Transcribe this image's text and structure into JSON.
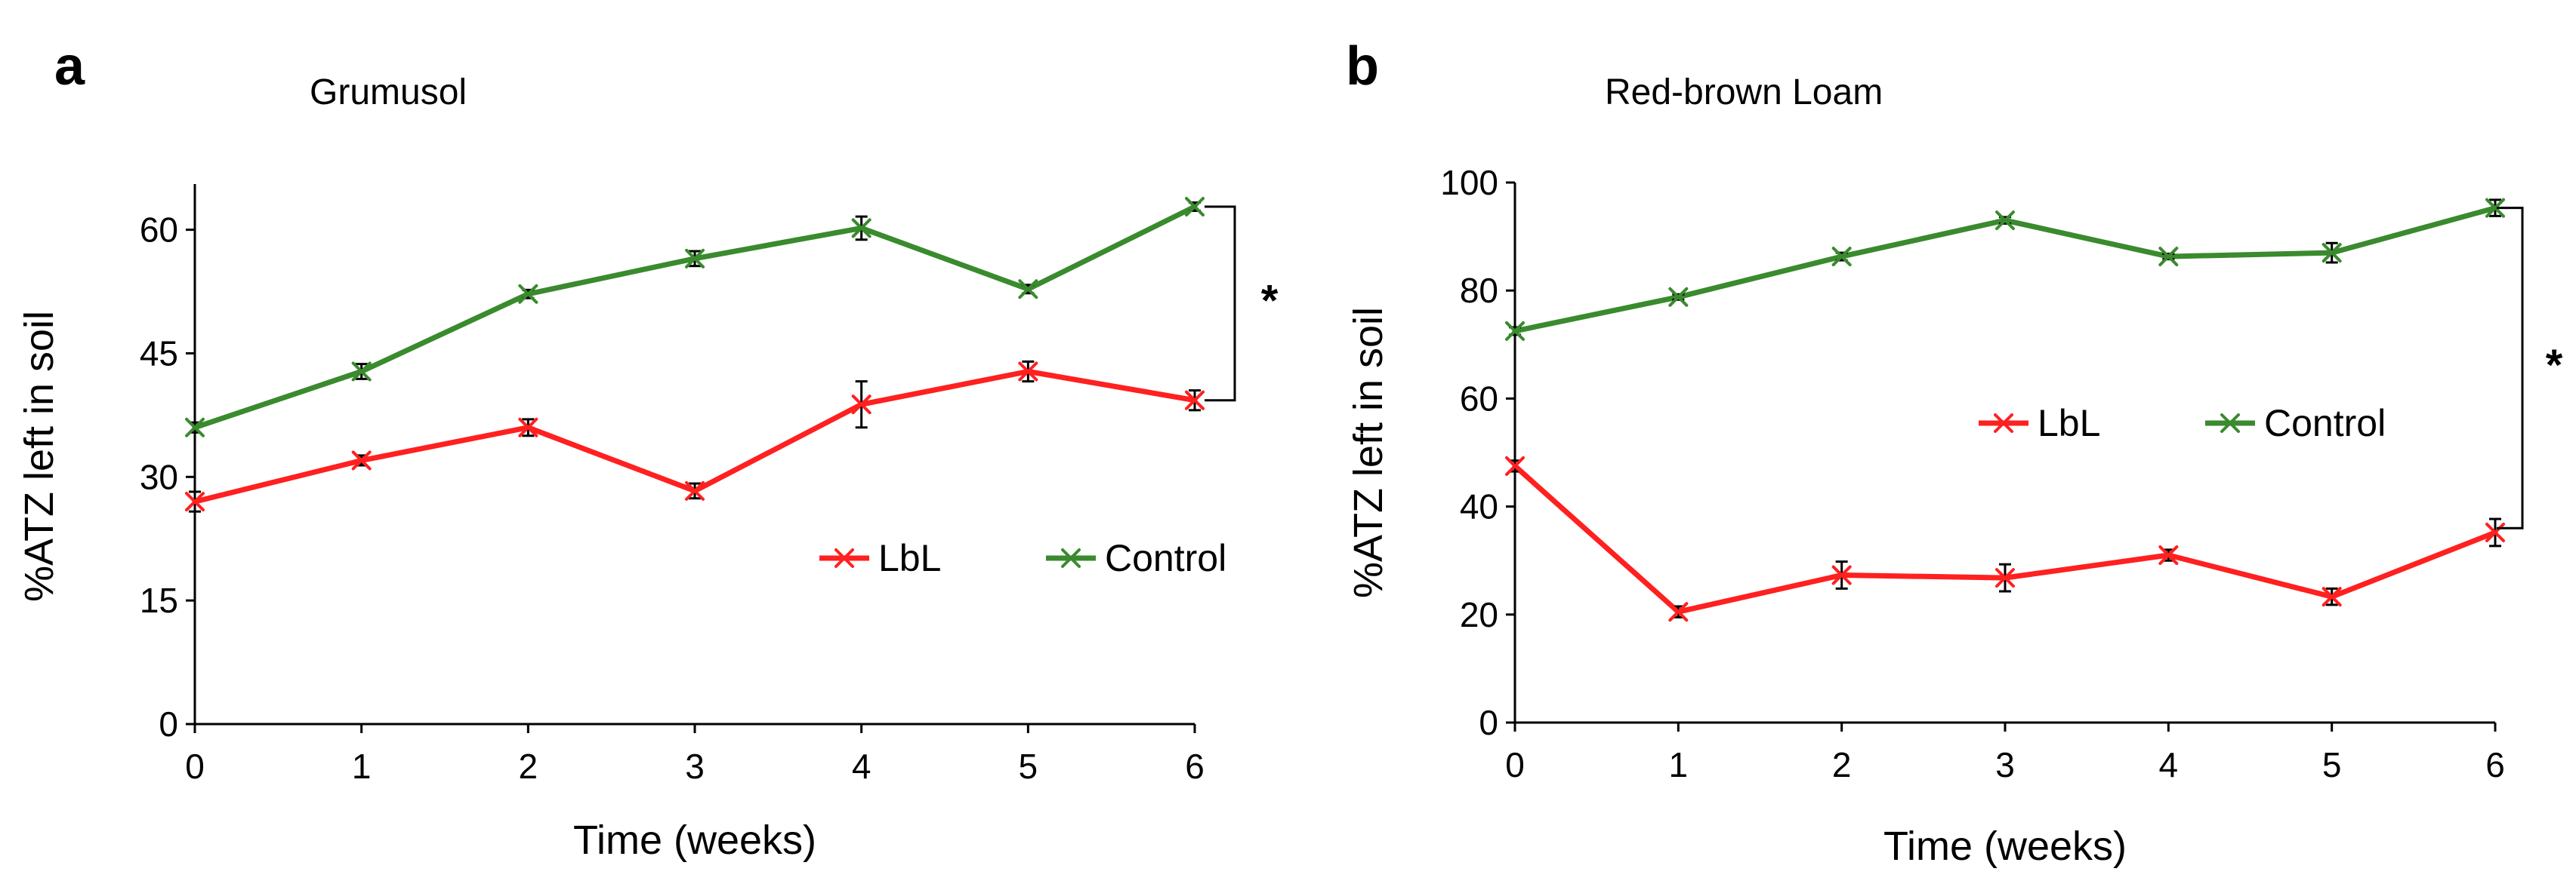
{
  "chart_data": [
    {
      "panel_label": "a",
      "type": "line",
      "title": "Grumusol",
      "xlabel": "Time (weeks)",
      "ylabel": "%ATZ left in soil",
      "x": [
        0,
        1,
        2,
        3,
        4,
        5,
        6
      ],
      "xticks": [
        "0",
        "1",
        "2",
        "3",
        "4",
        "5",
        "6"
      ],
      "xlim": [
        0,
        6
      ],
      "ylim": [
        0,
        65
      ],
      "yticks": [
        0,
        15,
        30,
        45,
        60
      ],
      "ytick_labels": [
        "0",
        "15",
        "30",
        "45",
        "60"
      ],
      "grid": false,
      "legend_position": "lower-right",
      "series": [
        {
          "name": "LbL",
          "color": "#ff2020",
          "values": [
            27.0,
            32.0,
            36.0,
            28.3,
            38.8,
            42.8,
            39.3
          ],
          "errors": [
            1.2,
            0.6,
            1.0,
            0.9,
            2.8,
            1.2,
            1.2
          ]
        },
        {
          "name": "Control",
          "color": "#3a8a2e",
          "values": [
            36.0,
            42.8,
            52.2,
            56.5,
            60.2,
            52.8,
            62.8
          ],
          "errors": [
            0.6,
            0.9,
            0.5,
            0.9,
            1.4,
            0.5,
            0.5
          ]
        }
      ],
      "significance": {
        "label": "*",
        "range": [
          39.3,
          62.8
        ]
      }
    },
    {
      "panel_label": "b",
      "type": "line",
      "title": "Red-brown Loam",
      "xlabel": "Time (weeks)",
      "ylabel": "%ATZ left in soil",
      "x": [
        0,
        1,
        2,
        3,
        4,
        5,
        6
      ],
      "xticks": [
        "0",
        "1",
        "2",
        "3",
        "4",
        "5",
        "6"
      ],
      "xlim": [
        0,
        6
      ],
      "ylim": [
        0,
        100
      ],
      "yticks": [
        0,
        20,
        40,
        60,
        80,
        100
      ],
      "ytick_labels": [
        "0",
        "20",
        "40",
        "60",
        "80",
        "100"
      ],
      "grid": false,
      "legend_position": "center-right",
      "series": [
        {
          "name": "LbL",
          "color": "#ff2020",
          "values": [
            47.5,
            20.5,
            27.3,
            26.8,
            31.0,
            23.3,
            35.2
          ],
          "errors": [
            1.0,
            1.0,
            2.5,
            2.5,
            1.0,
            1.5,
            2.5
          ]
        },
        {
          "name": "Control",
          "color": "#3a8a2e",
          "values": [
            72.5,
            78.8,
            86.3,
            93.0,
            86.3,
            87.0,
            95.3
          ],
          "errors": [
            0.7,
            0.5,
            0.7,
            0.6,
            0.5,
            1.8,
            1.5
          ]
        }
      ],
      "significance": {
        "label": "*",
        "range": [
          36.0,
          95.3
        ]
      }
    }
  ]
}
